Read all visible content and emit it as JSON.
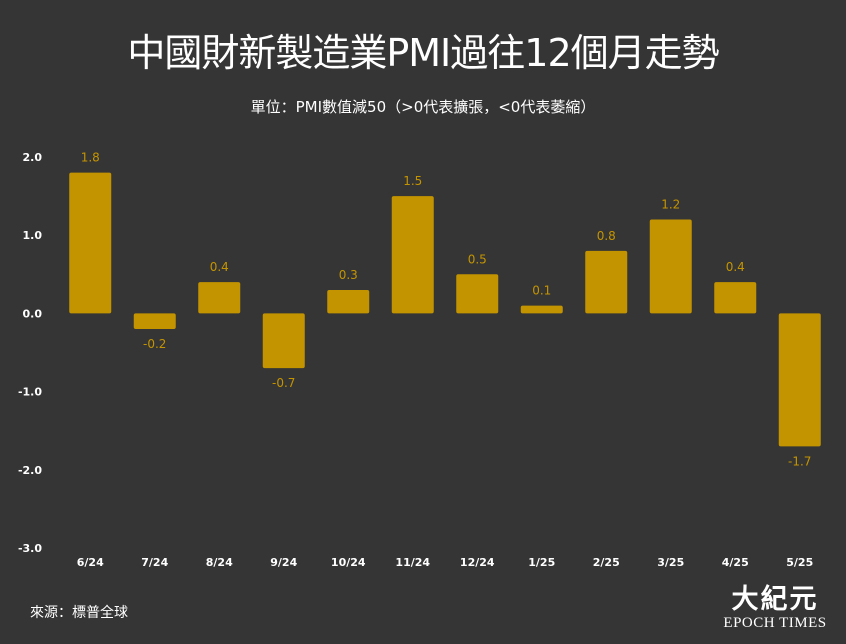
{
  "title": "中國財新製造業PMI過往12個月走勢",
  "subtitle": "單位：PMI數值減50（>0代表擴張，<0代表萎縮）",
  "source": "來源：標普全球",
  "logo": {
    "mark": "大紀元",
    "text": "EPOCH TIMES"
  },
  "colors": {
    "bar": "#c49400",
    "label": "#c49400",
    "background": "#353535",
    "text": "#ffffff"
  },
  "chart_data": {
    "type": "bar",
    "categories": [
      "6/24",
      "7/24",
      "8/24",
      "9/24",
      "10/24",
      "11/24",
      "12/24",
      "1/25",
      "2/25",
      "3/25",
      "4/25",
      "5/25"
    ],
    "values": [
      1.8,
      -0.2,
      0.4,
      -0.7,
      0.3,
      1.5,
      0.5,
      0.1,
      0.8,
      1.2,
      0.4,
      -1.7
    ],
    "data_labels": [
      "1.8",
      "-0.2",
      "0.4",
      "-0.7",
      "0.3",
      "1.5",
      "0.5",
      "0.1",
      "0.8",
      "1.2",
      "0.4",
      "-1.7"
    ],
    "y_ticks": [
      2.0,
      1.0,
      0.0,
      -1.0,
      -2.0,
      -3.0
    ],
    "y_tick_labels": [
      "2.0",
      "1.0",
      "0.0",
      "-1.0",
      "-2.0",
      "-3.0"
    ],
    "ylim": [
      -3.0,
      2.0
    ],
    "grid": false,
    "legend": "none"
  }
}
